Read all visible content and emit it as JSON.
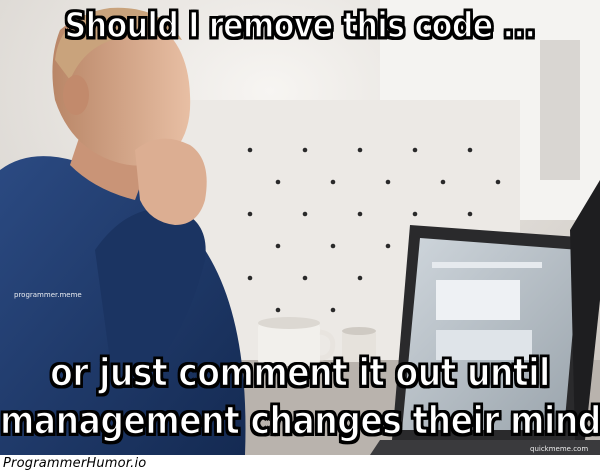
{
  "meme": {
    "top_text": "Should I remove this code ...",
    "bottom_text_line1": "or just comment it out until",
    "bottom_text_line2": "management changes their mind",
    "watermark_left": "programmer.meme",
    "watermark_right": "quickmeme.com"
  },
  "footer": {
    "brand": "ProgrammerHumor.io"
  },
  "colors": {
    "caption_fill": "#ffffff",
    "caption_stroke": "#000000",
    "sweater": "#1f3a6a",
    "skin": "#d8a98c",
    "background_wall": "#e9e6e2",
    "laptop_body": "#2a2a2c"
  }
}
